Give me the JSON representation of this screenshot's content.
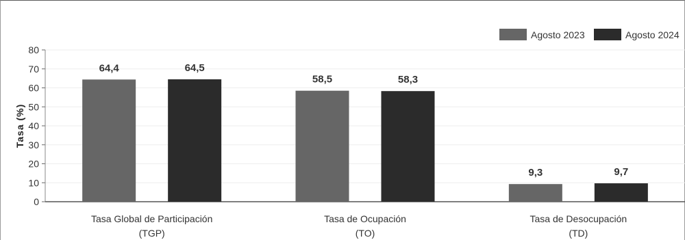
{
  "chart_data": {
    "type": "bar",
    "categories": [
      [
        "Tasa Global de Participación",
        "(TGP)"
      ],
      [
        "Tasa de Ocupación",
        "(TO)"
      ],
      [
        "Tasa de Desocupación",
        "(TD)"
      ]
    ],
    "series": [
      {
        "name": "Agosto 2023",
        "values": [
          64.4,
          58.5,
          9.3
        ],
        "labels": [
          "64,4",
          "58,5",
          "9,3"
        ],
        "color": "#666666"
      },
      {
        "name": "Agosto 2024",
        "values": [
          64.5,
          58.3,
          9.7
        ],
        "labels": [
          "64,5",
          "58,3",
          "9,7"
        ],
        "color": "#2b2b2b"
      }
    ],
    "title": "",
    "xlabel": "",
    "ylabel": "Tasa (%)",
    "ylim": [
      0,
      80
    ],
    "yticks": [
      0,
      10,
      20,
      30,
      40,
      50,
      60,
      70,
      80
    ],
    "grid": true,
    "legend": "top-right"
  }
}
